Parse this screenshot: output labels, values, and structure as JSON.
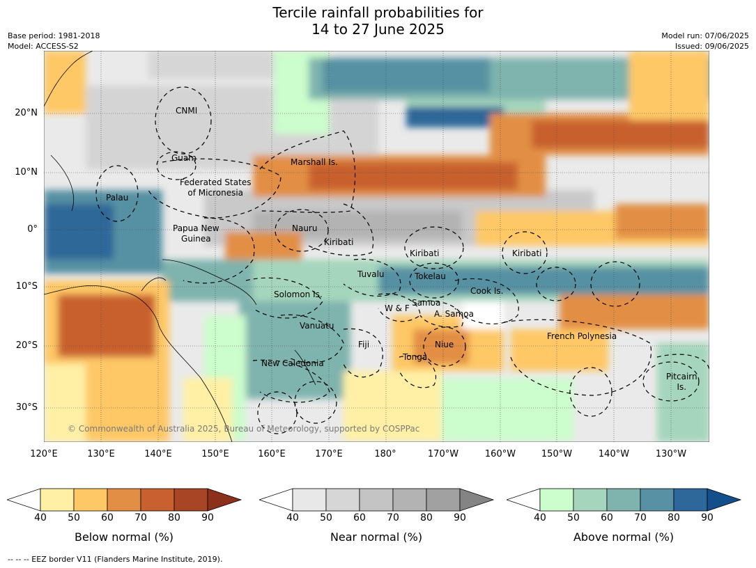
{
  "title_line1": "Tercile rainfall probabilities for",
  "title_line2": "14 to 27 June 2025",
  "meta": {
    "base_period": "Base period: 1981-2018",
    "model": "Model: ACCESS-S2",
    "model_run": "Model run: 07/06/2025",
    "issued": "Issued: 09/06/2025"
  },
  "lat_ticks": [
    "20°N",
    "10°N",
    "0°",
    "10°S",
    "20°S",
    "30°S"
  ],
  "lon_ticks": [
    "120°E",
    "130°E",
    "140°E",
    "150°E",
    "160°E",
    "170°E",
    "180°",
    "170°W",
    "160°W",
    "150°W",
    "140°W",
    "130°W"
  ],
  "regions": [
    "CNMI",
    "Guam",
    "Marshall Is.",
    "Federated States\nof Micronesia",
    "Palau",
    "Papua New\nGuinea",
    "Nauru",
    "Kiribati",
    "Kiribati",
    "Kiribati",
    "Tuvalu",
    "Tokelau",
    "Solomon Is.",
    "Cook Is.",
    "W & F",
    "Samoa",
    "A. Samoa",
    "Vanuatu",
    "Fiji",
    "Niue",
    "French Polynesia",
    "Tonga",
    "New Caledonia",
    "Pitcairn\nIs."
  ],
  "copyright": "© Commonwealth of Australia 2025, Bureau of Meteorology, supported by COSPPac",
  "colorbars": [
    {
      "title": "Below normal (%)",
      "ticks": [
        "40",
        "50",
        "60",
        "70",
        "80",
        "90"
      ],
      "colors": [
        "#ffffff",
        "#fff0a6",
        "#fec866",
        "#e28f45",
        "#c8602f",
        "#a84524",
        "#8c2f1b"
      ]
    },
    {
      "title": "Near normal (%)",
      "ticks": [
        "40",
        "50",
        "60",
        "70",
        "80",
        "90"
      ],
      "colors": [
        "#ffffff",
        "#e8e8e8",
        "#d6d6d6",
        "#c4c4c4",
        "#b3b3b3",
        "#a1a1a1",
        "#848484"
      ]
    },
    {
      "title": "Above normal (%)",
      "ticks": [
        "40",
        "50",
        "60",
        "70",
        "80",
        "90"
      ],
      "colors": [
        "#ffffff",
        "#ccfdcc",
        "#a5d6bd",
        "#7fb3ad",
        "#5791a3",
        "#2e6799",
        "#124f8b"
      ]
    }
  ],
  "footer": "-- -- -- EEZ border V11 (Flanders Marine Institute, 2019)."
}
